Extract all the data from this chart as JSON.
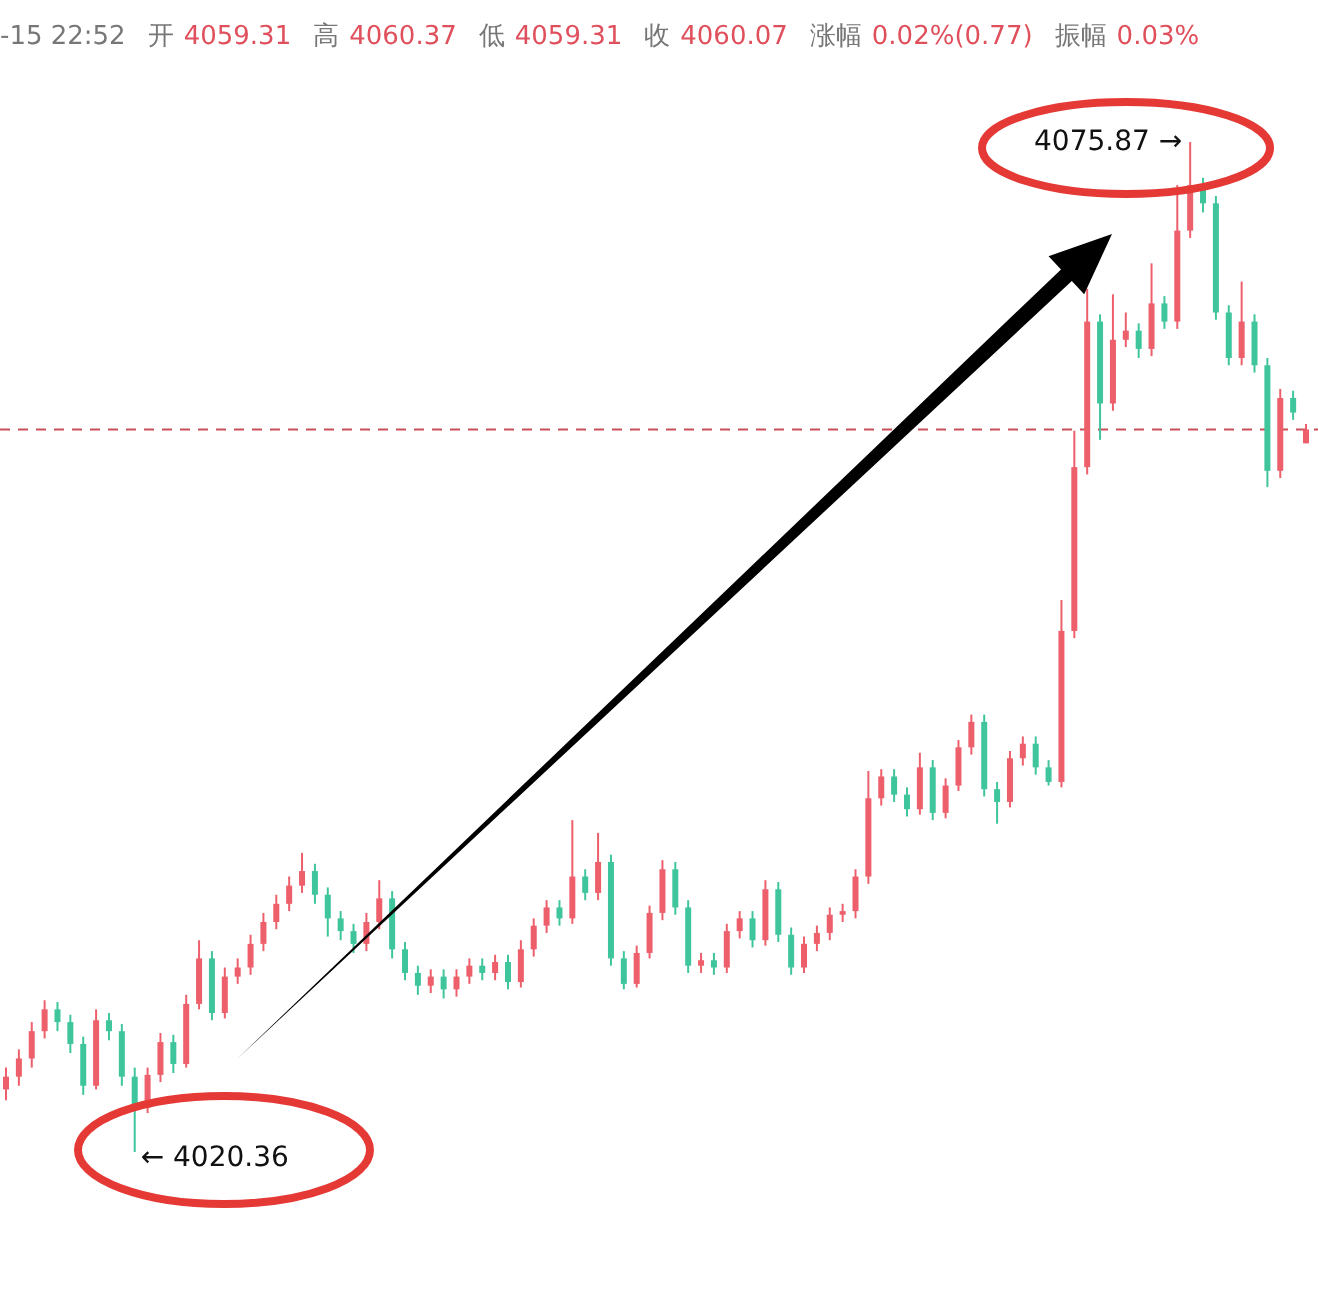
{
  "chart_data": {
    "type": "candlestick",
    "categories": [
      null,
      null,
      null,
      null,
      null,
      null,
      null,
      null,
      null,
      null,
      null,
      null,
      null,
      null,
      null,
      null,
      null,
      null,
      null,
      null,
      null,
      null,
      null,
      null,
      null,
      null,
      null,
      null,
      null,
      null,
      null,
      null,
      null,
      null,
      null,
      null,
      null,
      null,
      null,
      null,
      null,
      null,
      null,
      null,
      null,
      null,
      null,
      null,
      null,
      null,
      null,
      null,
      null,
      null,
      null,
      null,
      null,
      null,
      null,
      null,
      null,
      null,
      null,
      null,
      null,
      null,
      null,
      null,
      null,
      null,
      null,
      null,
      null,
      null,
      null,
      null,
      null,
      null,
      null,
      null,
      null,
      null,
      null,
      null,
      null,
      null,
      null,
      null,
      null,
      null,
      null,
      null,
      null,
      null,
      null,
      null,
      null,
      null,
      null,
      null,
      null,
      null
    ],
    "ohlc": [
      [
        4023.8,
        4025.0,
        4023.2,
        4024.5
      ],
      [
        4024.5,
        4026.0,
        4024.0,
        4025.5
      ],
      [
        4025.5,
        4027.5,
        4025.0,
        4027.0
      ],
      [
        4027.0,
        4028.7,
        4026.6,
        4028.2
      ],
      [
        4028.2,
        4028.6,
        4027.0,
        4027.5
      ],
      [
        4027.5,
        4027.9,
        4025.8,
        4026.3
      ],
      [
        4026.3,
        4026.7,
        4023.5,
        4024.0
      ],
      [
        4024.0,
        4028.2,
        4023.8,
        4027.6
      ],
      [
        4027.6,
        4028.0,
        4026.5,
        4027.0
      ],
      [
        4027.0,
        4027.4,
        4024.0,
        4024.5
      ],
      [
        4024.5,
        4025.0,
        4020.36,
        4022.8
      ],
      [
        4022.8,
        4025.0,
        4022.5,
        4024.6
      ],
      [
        4024.6,
        4026.9,
        4024.2,
        4026.4
      ],
      [
        4026.4,
        4026.8,
        4024.7,
        4025.2
      ],
      [
        4025.2,
        4029.0,
        4025.0,
        4028.5
      ],
      [
        4028.5,
        4032.0,
        4028.2,
        4031.0
      ],
      [
        4031.0,
        4031.4,
        4027.6,
        4028.0
      ],
      [
        4028.0,
        4030.5,
        4027.7,
        4030.0
      ],
      [
        4030.0,
        4031.0,
        4029.6,
        4030.5
      ],
      [
        4030.5,
        4032.3,
        4030.1,
        4031.8
      ],
      [
        4031.8,
        4033.5,
        4031.4,
        4033.0
      ],
      [
        4033.0,
        4034.5,
        4032.6,
        4034.0
      ],
      [
        4034.0,
        4035.5,
        4033.6,
        4035.0
      ],
      [
        4035.0,
        4036.8,
        4034.6,
        4035.8
      ],
      [
        4035.8,
        4036.2,
        4034.0,
        4034.5
      ],
      [
        4034.5,
        4034.9,
        4032.2,
        4033.2
      ],
      [
        4033.2,
        4033.6,
        4032.0,
        4032.5
      ],
      [
        4032.5,
        4032.9,
        4031.3,
        4031.8
      ],
      [
        4031.8,
        4033.5,
        4031.4,
        4033.0
      ],
      [
        4033.0,
        4035.3,
        4032.6,
        4034.3
      ],
      [
        4034.3,
        4034.7,
        4031.0,
        4031.5
      ],
      [
        4031.5,
        4031.9,
        4029.8,
        4030.2
      ],
      [
        4030.2,
        4030.6,
        4029.0,
        4029.5
      ],
      [
        4029.5,
        4030.4,
        4029.1,
        4030.0
      ],
      [
        4030.0,
        4030.4,
        4028.8,
        4029.3
      ],
      [
        4029.3,
        4030.4,
        4028.9,
        4030.0
      ],
      [
        4030.0,
        4031.0,
        4029.6,
        4030.6
      ],
      [
        4030.6,
        4031.0,
        4029.8,
        4030.2
      ],
      [
        4030.2,
        4031.2,
        4029.8,
        4030.8
      ],
      [
        4030.8,
        4031.2,
        4029.3,
        4029.7
      ],
      [
        4029.7,
        4032.0,
        4029.4,
        4031.5
      ],
      [
        4031.5,
        4033.2,
        4031.1,
        4032.8
      ],
      [
        4032.8,
        4034.2,
        4032.4,
        4033.8
      ],
      [
        4033.8,
        4034.2,
        4032.8,
        4033.2
      ],
      [
        4033.2,
        4038.6,
        4032.9,
        4035.5
      ],
      [
        4035.5,
        4035.9,
        4034.2,
        4034.6
      ],
      [
        4034.6,
        4037.9,
        4034.2,
        4036.3
      ],
      [
        4036.3,
        4036.7,
        4030.6,
        4031.0
      ],
      [
        4031.0,
        4031.4,
        4029.3,
        4029.6
      ],
      [
        4029.6,
        4031.7,
        4029.4,
        4031.3
      ],
      [
        4031.3,
        4033.9,
        4031.0,
        4033.5
      ],
      [
        4033.5,
        4036.4,
        4033.1,
        4035.9
      ],
      [
        4035.9,
        4036.3,
        4033.4,
        4033.8
      ],
      [
        4033.8,
        4034.2,
        4030.2,
        4030.6
      ],
      [
        4030.6,
        4031.3,
        4030.2,
        4030.9
      ],
      [
        4030.9,
        4031.3,
        4030.1,
        4030.5
      ],
      [
        4030.5,
        4032.9,
        4030.2,
        4032.5
      ],
      [
        4032.5,
        4033.6,
        4032.1,
        4033.2
      ],
      [
        4033.2,
        4033.6,
        4031.6,
        4032.0
      ],
      [
        4032.0,
        4035.3,
        4031.7,
        4034.8
      ],
      [
        4034.8,
        4035.2,
        4031.9,
        4032.3
      ],
      [
        4032.3,
        4032.7,
        4030.1,
        4030.5
      ],
      [
        4030.5,
        4032.2,
        4030.2,
        4031.8
      ],
      [
        4031.8,
        4032.8,
        4031.4,
        4032.4
      ],
      [
        4032.4,
        4033.8,
        4032.0,
        4033.4
      ],
      [
        4033.4,
        4034.0,
        4033.0,
        4033.6
      ],
      [
        4033.6,
        4035.9,
        4033.2,
        4035.5
      ],
      [
        4035.5,
        4041.3,
        4035.1,
        4039.8
      ],
      [
        4039.8,
        4041.4,
        4039.4,
        4041.0
      ],
      [
        4041.0,
        4041.4,
        4039.6,
        4040.0
      ],
      [
        4040.0,
        4040.4,
        4038.8,
        4039.2
      ],
      [
        4039.2,
        4042.3,
        4038.9,
        4041.5
      ],
      [
        4041.5,
        4041.9,
        4038.6,
        4039.0
      ],
      [
        4039.0,
        4040.9,
        4038.7,
        4040.5
      ],
      [
        4040.5,
        4043.0,
        4040.2,
        4042.6
      ],
      [
        4042.6,
        4044.4,
        4042.2,
        4044.0
      ],
      [
        4044.0,
        4044.4,
        4039.9,
        4040.3
      ],
      [
        4040.3,
        4040.7,
        4038.4,
        4039.6
      ],
      [
        4039.6,
        4042.4,
        4039.3,
        4042.0
      ],
      [
        4042.0,
        4043.2,
        4041.6,
        4042.8
      ],
      [
        4042.8,
        4043.2,
        4041.1,
        4041.5
      ],
      [
        4041.5,
        4041.9,
        4040.5,
        4040.7
      ],
      [
        4040.7,
        4050.7,
        4040.4,
        4049.0
      ],
      [
        4049.0,
        4060.0,
        4048.6,
        4058.0
      ],
      [
        4058.0,
        4067.8,
        4057.6,
        4066.0
      ],
      [
        4066.0,
        4066.4,
        4059.5,
        4061.5
      ],
      [
        4061.5,
        4067.5,
        4061.1,
        4065.0
      ],
      [
        4065.0,
        4066.5,
        4064.6,
        4065.5
      ],
      [
        4065.5,
        4065.9,
        4064.0,
        4064.5
      ],
      [
        4064.5,
        4069.2,
        4064.1,
        4067.0
      ],
      [
        4067.0,
        4067.4,
        4065.6,
        4066.0
      ],
      [
        4066.0,
        4073.5,
        4065.6,
        4071.0
      ],
      [
        4071.0,
        4075.87,
        4070.6,
        4073.5
      ],
      [
        4073.5,
        4073.9,
        4072.0,
        4072.5
      ],
      [
        4072.5,
        4072.9,
        4066.1,
        4066.5
      ],
      [
        4066.5,
        4066.9,
        4063.6,
        4064.0
      ],
      [
        4064.0,
        4068.2,
        4063.6,
        4066.0
      ],
      [
        4066.0,
        4066.4,
        4063.2,
        4063.6
      ],
      [
        4063.6,
        4064.0,
        4056.9,
        4057.8
      ],
      [
        4057.8,
        4062.3,
        4057.4,
        4061.8
      ],
      [
        4061.8,
        4062.2,
        4060.6,
        4061.0
      ],
      [
        4059.31,
        4060.37,
        4059.31,
        4060.07
      ]
    ],
    "ref_lines": [
      {
        "axis": "y",
        "value": 4060.07,
        "color": "#c9505a",
        "line_style": "dashed"
      }
    ],
    "annotations": [
      "-15 22:52",
      "开",
      "4059.31",
      "高",
      "4060.37",
      "低",
      "4059.31",
      "收",
      "4060.07",
      "涨幅",
      "0.02%(0.77)",
      "振幅",
      "0.03%",
      "← 4020.36",
      "4075.87 →"
    ]
  }
}
